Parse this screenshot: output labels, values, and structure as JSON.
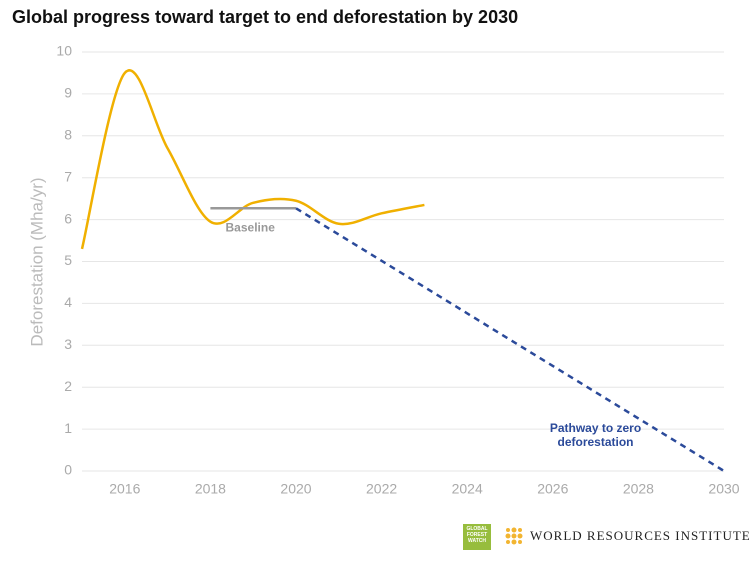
{
  "chart_data": {
    "type": "line",
    "title": "Global progress toward target to end deforestation by 2030",
    "y_label": "Deforestation (Mha/yr)",
    "xlim": [
      2015,
      2030
    ],
    "xticks": [
      2016,
      2018,
      2020,
      2022,
      2024,
      2026,
      2028,
      2030
    ],
    "ylim": [
      0,
      10
    ],
    "yticks": [
      0,
      1,
      2,
      3,
      4,
      5,
      6,
      7,
      8,
      9,
      10
    ],
    "grid": true,
    "series": [
      {
        "color": "#f0b000",
        "style": "smooth",
        "x": [
          2015,
          2016,
          2017,
          2018,
          2019,
          2020,
          2021,
          2022,
          2023
        ],
        "values": [
          5.3,
          9.5,
          7.7,
          5.95,
          6.4,
          6.45,
          5.9,
          6.15,
          6.35
        ]
      },
      {
        "name": "Baseline",
        "color": "#999999",
        "style": "solid",
        "x": [
          2018,
          2020
        ],
        "values": [
          6.27,
          6.27
        ]
      },
      {
        "name": "Pathway to zero deforestation",
        "color": "#2b4a9a",
        "style": "dashed",
        "x": [
          2020,
          2030
        ],
        "values": [
          6.27,
          0
        ]
      }
    ]
  },
  "footer": {
    "gfw": "GLOBAL FOREST WATCH",
    "wri": "WORLD RESOURCES INSTITUTE"
  }
}
